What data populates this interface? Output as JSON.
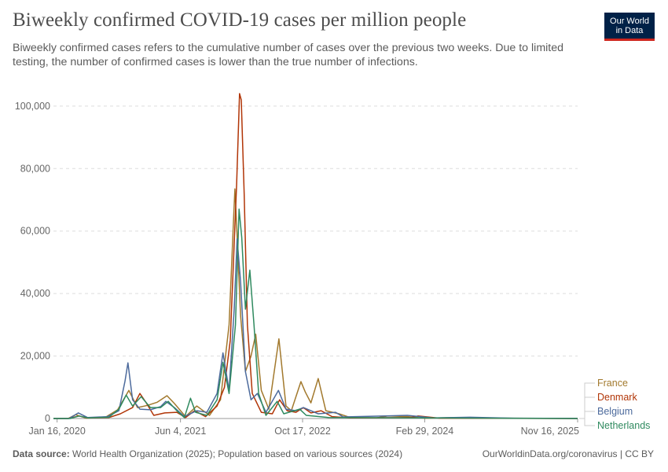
{
  "header": {
    "title": "Biweekly confirmed COVID-19 cases per million people",
    "subtitle": "Biweekly confirmed cases refers to the cumulative number of cases over the previous two weeks. Due to limited testing, the number of confirmed cases is lower than the true number of infections."
  },
  "logo": {
    "line1": "Our World",
    "line2": "in Data"
  },
  "footer": {
    "source_label": "Data source:",
    "source_text": "World Health Organization (2025); Population based on various sources (2024)",
    "link": "OurWorldinData.org/coronavirus | CC BY"
  },
  "chart_data": {
    "type": "line",
    "title": "Biweekly confirmed COVID-19 cases per million people",
    "ylim": [
      0,
      105000
    ],
    "y_ticks": [
      0,
      20000,
      40000,
      60000,
      80000,
      100000
    ],
    "y_tick_labels": [
      "0",
      "20,000",
      "40,000",
      "60,000",
      "80,000",
      "100,000"
    ],
    "x_range": [
      "2020-01-01",
      "2025-11-16"
    ],
    "x_ticks": [
      "2020-01-16",
      "2021-06-04",
      "2022-10-17",
      "2024-02-29",
      "2025-11-16"
    ],
    "x_tick_labels": [
      "Jan 16, 2020",
      "Jun 4, 2021",
      "Oct 17, 2022",
      "Feb 29, 2024",
      "Nov 16, 2025"
    ],
    "grid": "horizontal-dashed",
    "legend": "right",
    "series": [
      {
        "name": "France",
        "color": "#a2792d",
        "points": [
          [
            "2020-01-01",
            0
          ],
          [
            "2020-03-01",
            0
          ],
          [
            "2020-04-01",
            1200
          ],
          [
            "2020-05-15",
            100
          ],
          [
            "2020-08-01",
            400
          ],
          [
            "2020-09-20",
            2800
          ],
          [
            "2020-11-05",
            9000
          ],
          [
            "2020-12-10",
            3500
          ],
          [
            "2021-01-20",
            4200
          ],
          [
            "2021-03-01",
            5200
          ],
          [
            "2021-04-10",
            7300
          ],
          [
            "2021-05-10",
            4800
          ],
          [
            "2021-06-25",
            600
          ],
          [
            "2021-08-10",
            4000
          ],
          [
            "2021-10-01",
            1000
          ],
          [
            "2021-11-15",
            6000
          ],
          [
            "2021-12-20",
            30000
          ],
          [
            "2022-01-08",
            65000
          ],
          [
            "2022-01-13",
            73500
          ],
          [
            "2022-01-20",
            62000
          ],
          [
            "2022-02-05",
            33000
          ],
          [
            "2022-02-25",
            15000
          ],
          [
            "2022-03-20",
            20000
          ],
          [
            "2022-04-08",
            27000
          ],
          [
            "2022-05-01",
            9000
          ],
          [
            "2022-06-01",
            3000
          ],
          [
            "2022-07-12",
            25500
          ],
          [
            "2022-08-10",
            4000
          ],
          [
            "2022-09-01",
            2500
          ],
          [
            "2022-10-10",
            11800
          ],
          [
            "2022-10-28",
            8500
          ],
          [
            "2022-11-20",
            5000
          ],
          [
            "2022-12-20",
            12800
          ],
          [
            "2023-01-20",
            2500
          ],
          [
            "2023-03-15",
            1500
          ],
          [
            "2023-05-01",
            300
          ],
          [
            "2023-08-15",
            200
          ],
          [
            "2023-10-01",
            800
          ],
          [
            "2023-12-20",
            600
          ],
          [
            "2024-03-01",
            100
          ],
          [
            "2024-07-01",
            300
          ],
          [
            "2024-10-01",
            100
          ],
          [
            "2025-11-16",
            20
          ]
        ]
      },
      {
        "name": "Denmark",
        "color": "#b13507",
        "points": [
          [
            "2020-01-01",
            0
          ],
          [
            "2020-03-01",
            0
          ],
          [
            "2020-04-15",
            800
          ],
          [
            "2020-05-20",
            200
          ],
          [
            "2020-08-15",
            300
          ],
          [
            "2020-10-01",
            1500
          ],
          [
            "2020-11-20",
            3500
          ],
          [
            "2020-12-20",
            8000
          ],
          [
            "2021-01-15",
            5000
          ],
          [
            "2021-02-15",
            1000
          ],
          [
            "2021-04-01",
            1800
          ],
          [
            "2021-05-20",
            2000
          ],
          [
            "2021-06-25",
            300
          ],
          [
            "2021-08-01",
            2500
          ],
          [
            "2021-09-15",
            600
          ],
          [
            "2021-11-01",
            4000
          ],
          [
            "2021-12-01",
            10000
          ],
          [
            "2021-12-25",
            25000
          ],
          [
            "2022-01-20",
            75000
          ],
          [
            "2022-02-01",
            104000
          ],
          [
            "2022-02-08",
            102000
          ],
          [
            "2022-02-20",
            72000
          ],
          [
            "2022-03-05",
            30000
          ],
          [
            "2022-03-25",
            8000
          ],
          [
            "2022-05-01",
            2000
          ],
          [
            "2022-06-15",
            1500
          ],
          [
            "2022-07-15",
            6000
          ],
          [
            "2022-08-15",
            2500
          ],
          [
            "2022-09-20",
            2000
          ],
          [
            "2022-10-20",
            3500
          ],
          [
            "2022-11-20",
            1800
          ],
          [
            "2023-01-01",
            2500
          ],
          [
            "2023-02-15",
            600
          ],
          [
            "2023-05-01",
            200
          ],
          [
            "2024-01-01",
            300
          ],
          [
            "2024-02-01",
            800
          ],
          [
            "2024-05-01",
            100
          ],
          [
            "2025-11-16",
            10
          ]
        ]
      },
      {
        "name": "Belgium",
        "color": "#4c6a9c",
        "points": [
          [
            "2020-01-01",
            0
          ],
          [
            "2020-03-05",
            0
          ],
          [
            "2020-04-12",
            1800
          ],
          [
            "2020-05-20",
            300
          ],
          [
            "2020-08-10",
            600
          ],
          [
            "2020-09-25",
            2500
          ],
          [
            "2020-10-20",
            12000
          ],
          [
            "2020-11-01",
            17800
          ],
          [
            "2020-11-20",
            6000
          ],
          [
            "2020-12-20",
            3000
          ],
          [
            "2021-02-01",
            2800
          ],
          [
            "2021-03-15",
            3800
          ],
          [
            "2021-04-05",
            5500
          ],
          [
            "2021-05-10",
            3500
          ],
          [
            "2021-06-20",
            600
          ],
          [
            "2021-08-10",
            2500
          ],
          [
            "2021-09-20",
            2000
          ],
          [
            "2021-11-01",
            8000
          ],
          [
            "2021-11-25",
            21000
          ],
          [
            "2021-12-20",
            9000
          ],
          [
            "2022-01-10",
            35000
          ],
          [
            "2022-01-22",
            57500
          ],
          [
            "2022-02-05",
            44000
          ],
          [
            "2022-02-25",
            15000
          ],
          [
            "2022-03-20",
            6000
          ],
          [
            "2022-04-15",
            8000
          ],
          [
            "2022-05-20",
            2000
          ],
          [
            "2022-07-10",
            9000
          ],
          [
            "2022-08-10",
            3000
          ],
          [
            "2022-09-20",
            2500
          ],
          [
            "2022-10-20",
            3500
          ],
          [
            "2022-11-20",
            2500
          ],
          [
            "2022-12-20",
            1500
          ],
          [
            "2023-03-01",
            2000
          ],
          [
            "2023-04-01",
            500
          ],
          [
            "2023-09-20",
            800
          ],
          [
            "2023-12-20",
            1000
          ],
          [
            "2024-04-01",
            200
          ],
          [
            "2024-09-01",
            400
          ],
          [
            "2025-03-01",
            100
          ],
          [
            "2025-11-16",
            30
          ]
        ]
      },
      {
        "name": "Netherlands",
        "color": "#2f8a5f",
        "points": [
          [
            "2020-01-01",
            0
          ],
          [
            "2020-03-10",
            0
          ],
          [
            "2020-04-15",
            800
          ],
          [
            "2020-05-20",
            200
          ],
          [
            "2020-08-15",
            400
          ],
          [
            "2020-09-25",
            3000
          ],
          [
            "2020-10-25",
            7500
          ],
          [
            "2020-11-20",
            4000
          ],
          [
            "2020-12-25",
            7000
          ],
          [
            "2021-02-01",
            3500
          ],
          [
            "2021-03-15",
            3500
          ],
          [
            "2021-04-15",
            5500
          ],
          [
            "2021-05-20",
            2500
          ],
          [
            "2021-06-20",
            300
          ],
          [
            "2021-07-15",
            6500
          ],
          [
            "2021-08-05",
            2000
          ],
          [
            "2021-09-20",
            1000
          ],
          [
            "2021-11-01",
            6000
          ],
          [
            "2021-11-25",
            18000
          ],
          [
            "2021-12-20",
            8000
          ],
          [
            "2022-01-15",
            30000
          ],
          [
            "2022-01-30",
            67000
          ],
          [
            "2022-02-10",
            58000
          ],
          [
            "2022-02-25",
            35000
          ],
          [
            "2022-03-15",
            47500
          ],
          [
            "2022-04-01",
            30000
          ],
          [
            "2022-04-20",
            8000
          ],
          [
            "2022-05-20",
            1000
          ],
          [
            "2022-07-05",
            5500
          ],
          [
            "2022-08-01",
            1500
          ],
          [
            "2022-10-05",
            3000
          ],
          [
            "2022-11-01",
            1000
          ],
          [
            "2023-02-01",
            300
          ],
          [
            "2025-11-16",
            0
          ]
        ]
      }
    ]
  }
}
